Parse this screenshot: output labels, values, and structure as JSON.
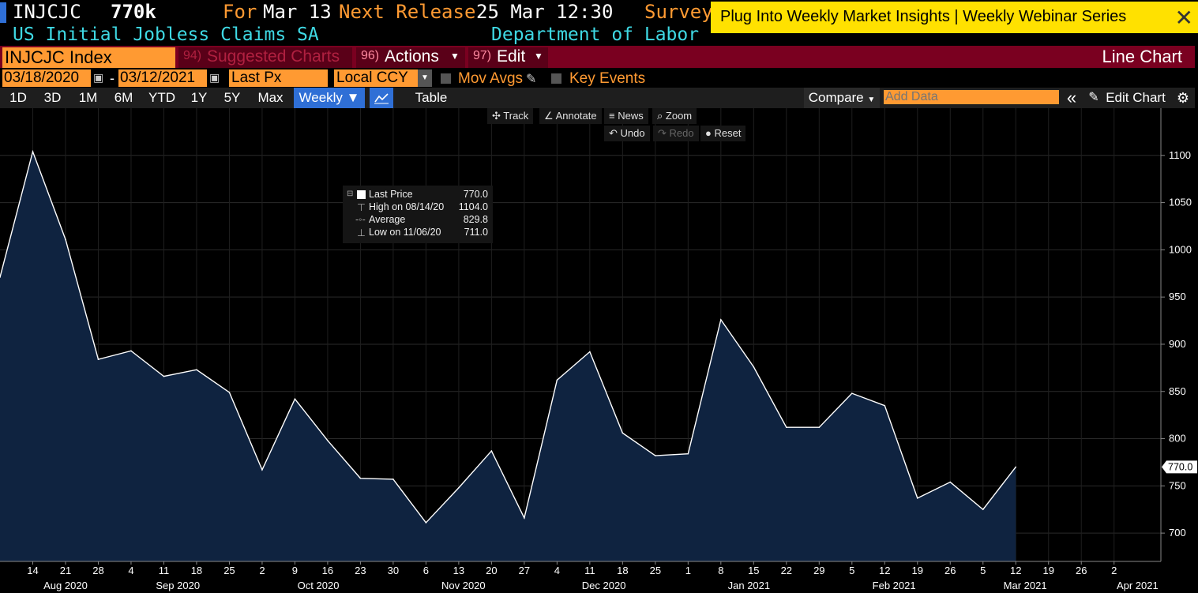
{
  "header": {
    "ticker": "INJCJC",
    "value": "770k",
    "for_label": "For",
    "for_date": "Mar 13",
    "next_label": "Next Release",
    "next_date": "25 Mar 12:30",
    "survey_label": "Survey",
    "subtitle": "US Initial Jobless Claims SA",
    "source": "Department of Labor"
  },
  "banner": {
    "text": "Plug Into Weekly Market Insights | Weekly Webinar Series",
    "close": "✕"
  },
  "menu": {
    "security": "INJCJC Index",
    "suggested_num": "94)",
    "suggested": "Suggested Charts",
    "actions_num": "96)",
    "actions": "Actions",
    "edit_num": "97)",
    "edit": "Edit",
    "chart_type": "Line Chart"
  },
  "settings": {
    "start_date": "03/18/2020",
    "dash": "-",
    "end_date": "03/12/2021",
    "field": "Last Px",
    "currency": "Local CCY",
    "mov_avgs": "Mov Avgs",
    "key_events": "Key Events"
  },
  "toolbar": {
    "periods": [
      "1D",
      "3D",
      "1M",
      "6M",
      "YTD",
      "1Y",
      "5Y",
      "Max"
    ],
    "frequency": "Weekly ▼",
    "table": "Table",
    "compare": "Compare",
    "add_data_placeholder": "Add Data",
    "collapse": "«",
    "edit_chart": "Edit Chart"
  },
  "chart_controls": {
    "track": "Track",
    "annotate": "Annotate",
    "news": "News",
    "zoom": "Zoom",
    "undo": "Undo",
    "redo": "Redo",
    "reset": "Reset"
  },
  "legend": {
    "last_label": "Last Price",
    "last_value": "770.0",
    "high_label": "High on 08/14/20",
    "high_value": "1104.0",
    "avg_label": "Average",
    "avg_value": "829.8",
    "low_label": "Low on 11/06/20",
    "low_value": "711.0"
  },
  "colors": {
    "line": "#ffffff",
    "area": "#0f2340",
    "accent_orange": "#ff9a32",
    "menu_bar": "#7a0020",
    "banner": "#ffe100",
    "cyan_text": "#3fd9e4",
    "selected_button": "#2f6fd6"
  },
  "chart_data": {
    "type": "area",
    "series": [
      {
        "x": [
          "2020-08-07",
          "2020-08-14",
          "2020-08-21",
          "2020-08-28",
          "2020-09-04",
          "2020-09-11",
          "2020-09-18",
          "2020-09-25",
          "2020-10-02",
          "2020-10-09",
          "2020-10-16",
          "2020-10-23",
          "2020-10-30",
          "2020-11-06",
          "2020-11-13",
          "2020-11-20",
          "2020-11-27",
          "2020-12-04",
          "2020-12-11",
          "2020-12-18",
          "2020-12-25",
          "2021-01-01",
          "2021-01-08",
          "2021-01-15",
          "2021-01-22",
          "2021-01-29",
          "2021-02-05",
          "2021-02-12",
          "2021-02-19",
          "2021-02-26",
          "2021-03-05",
          "2021-03-12"
        ],
        "values": [
          971,
          1104,
          1011,
          884,
          893,
          866,
          873,
          849,
          767,
          842,
          798,
          758,
          757,
          711,
          748,
          787,
          716,
          862,
          892,
          806,
          782,
          784,
          926,
          876,
          812,
          812,
          848,
          835,
          737,
          754,
          725,
          770
        ]
      }
    ],
    "last_value_label": "770.0",
    "y_ticks": [
      700,
      750,
      800,
      850,
      900,
      950,
      1000,
      1050,
      1100
    ],
    "ylim": [
      670,
      1150
    ],
    "x_tick_labels": [
      "14",
      "21",
      "28",
      "4",
      "11",
      "18",
      "25",
      "2",
      "9",
      "16",
      "23",
      "30",
      "6",
      "13",
      "20",
      "27",
      "4",
      "11",
      "18",
      "25",
      "1",
      "8",
      "15",
      "22",
      "29",
      "5",
      "12",
      "19",
      "26",
      "5",
      "12",
      "19",
      "26",
      "2"
    ],
    "x_tick_dates": [
      "2020-08-14",
      "2020-08-21",
      "2020-08-28",
      "2020-09-04",
      "2020-09-11",
      "2020-09-18",
      "2020-09-25",
      "2020-10-02",
      "2020-10-09",
      "2020-10-16",
      "2020-10-23",
      "2020-10-30",
      "2020-11-06",
      "2020-11-13",
      "2020-11-20",
      "2020-11-27",
      "2020-12-04",
      "2020-12-11",
      "2020-12-18",
      "2020-12-25",
      "2021-01-01",
      "2021-01-08",
      "2021-01-15",
      "2021-01-22",
      "2021-01-29",
      "2021-02-05",
      "2021-02-12",
      "2021-02-19",
      "2021-02-26",
      "2021-03-05",
      "2021-03-12",
      "2021-03-19",
      "2021-03-26",
      "2021-04-02"
    ],
    "month_labels": [
      "Aug 2020",
      "Sep 2020",
      "Oct 2020",
      "Nov 2020",
      "Dec 2020",
      "Jan 2021",
      "Feb 2021",
      "Mar 2021",
      "Apr 2021"
    ],
    "month_label_dates": [
      "2020-08-21",
      "2020-09-14",
      "2020-10-14",
      "2020-11-14",
      "2020-12-14",
      "2021-01-14",
      "2021-02-14",
      "2021-03-14",
      "2021-04-07"
    ],
    "xlim": [
      "2020-08-07",
      "2021-04-12"
    ],
    "grid": true
  }
}
